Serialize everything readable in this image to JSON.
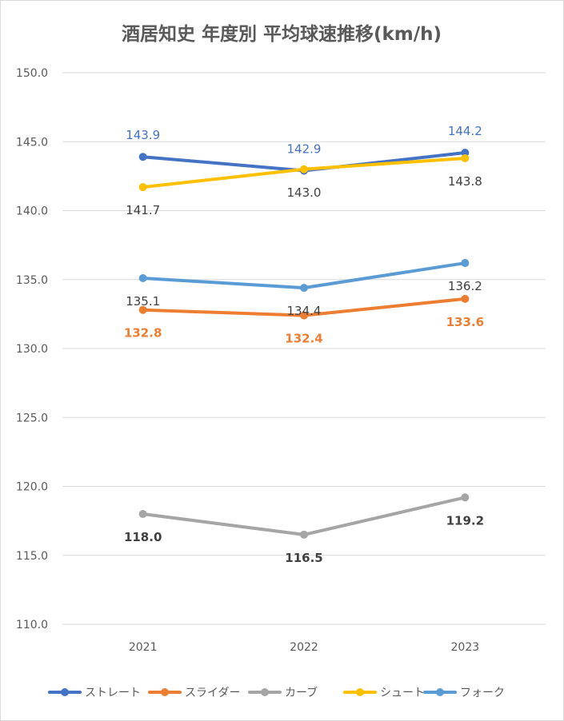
{
  "chart_data": {
    "type": "line",
    "title": "酒居知史 年度別 平均球速推移(km/h)",
    "categories": [
      "2021",
      "2022",
      "2023"
    ],
    "ylim": [
      110,
      150
    ],
    "yticks": [
      "110.0",
      "115.0",
      "120.0",
      "125.0",
      "130.0",
      "135.0",
      "140.0",
      "145.0",
      "150.0"
    ],
    "grid": true,
    "legend": "bottom",
    "series": [
      {
        "name": "ストレート",
        "color": "#4472C4",
        "values": [
          143.9,
          142.9,
          144.2
        ],
        "labels": [
          "143.9",
          "142.9",
          "144.2"
        ],
        "label_pos": "above",
        "label_color": "#4472C4",
        "label_bold": false
      },
      {
        "name": "スライダー",
        "color": "#ED7D31",
        "values": [
          132.8,
          132.4,
          133.6
        ],
        "labels": [
          "132.8",
          "132.4",
          "133.6"
        ],
        "label_pos": "below",
        "label_color": "#ED7D31",
        "label_bold": true
      },
      {
        "name": "カーブ",
        "color": "#A5A5A5",
        "values": [
          118.0,
          116.5,
          119.2
        ],
        "labels": [
          "118.0",
          "116.5",
          "119.2"
        ],
        "label_pos": "below",
        "label_color": "#404040",
        "label_bold": true
      },
      {
        "name": "シュート",
        "color": "#FFC000",
        "values": [
          141.7,
          143.0,
          143.8
        ],
        "labels": [
          "141.7",
          "143.0",
          "143.8"
        ],
        "label_pos": "below",
        "label_color": "#404040",
        "label_bold": false
      },
      {
        "name": "フォーク",
        "color": "#5B9BD5",
        "values": [
          135.1,
          134.4,
          136.2
        ],
        "labels": [
          "135.1",
          "134.4",
          "136.2"
        ],
        "label_pos": "below",
        "label_color": "#404040",
        "label_bold": false
      }
    ]
  }
}
